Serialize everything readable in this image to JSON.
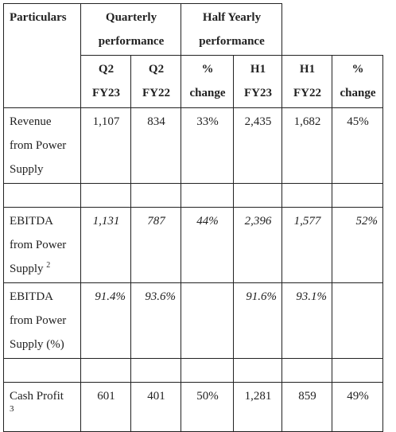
{
  "table": {
    "header": {
      "particulars": "Particulars",
      "quarterly": "Quarterly performance",
      "half_yearly": "Half Yearly performance",
      "cols": [
        "Q2 FY23",
        "Q2 FY22",
        "% change",
        "H1 FY23",
        "H1 FY22",
        "% change"
      ]
    },
    "rows": [
      {
        "label": "Revenue from Power Supply",
        "values": [
          "1,107",
          "834",
          "33%",
          "2,435",
          "1,682",
          "45%"
        ]
      },
      {
        "label": "EBITDA from Power Supply",
        "sup": "2",
        "values": [
          "1,131",
          "787",
          "44%",
          "2,396",
          "1,577",
          "52%"
        ]
      },
      {
        "label": "EBITDA from Power Supply (%)",
        "values": [
          "91.4%",
          "93.6%",
          "",
          "91.6%",
          "93.1%",
          ""
        ]
      },
      {
        "label": "Cash Profit",
        "sup": "3",
        "values": [
          "601",
          "401",
          "50%",
          "1,281",
          "859",
          "49%"
        ]
      }
    ]
  }
}
